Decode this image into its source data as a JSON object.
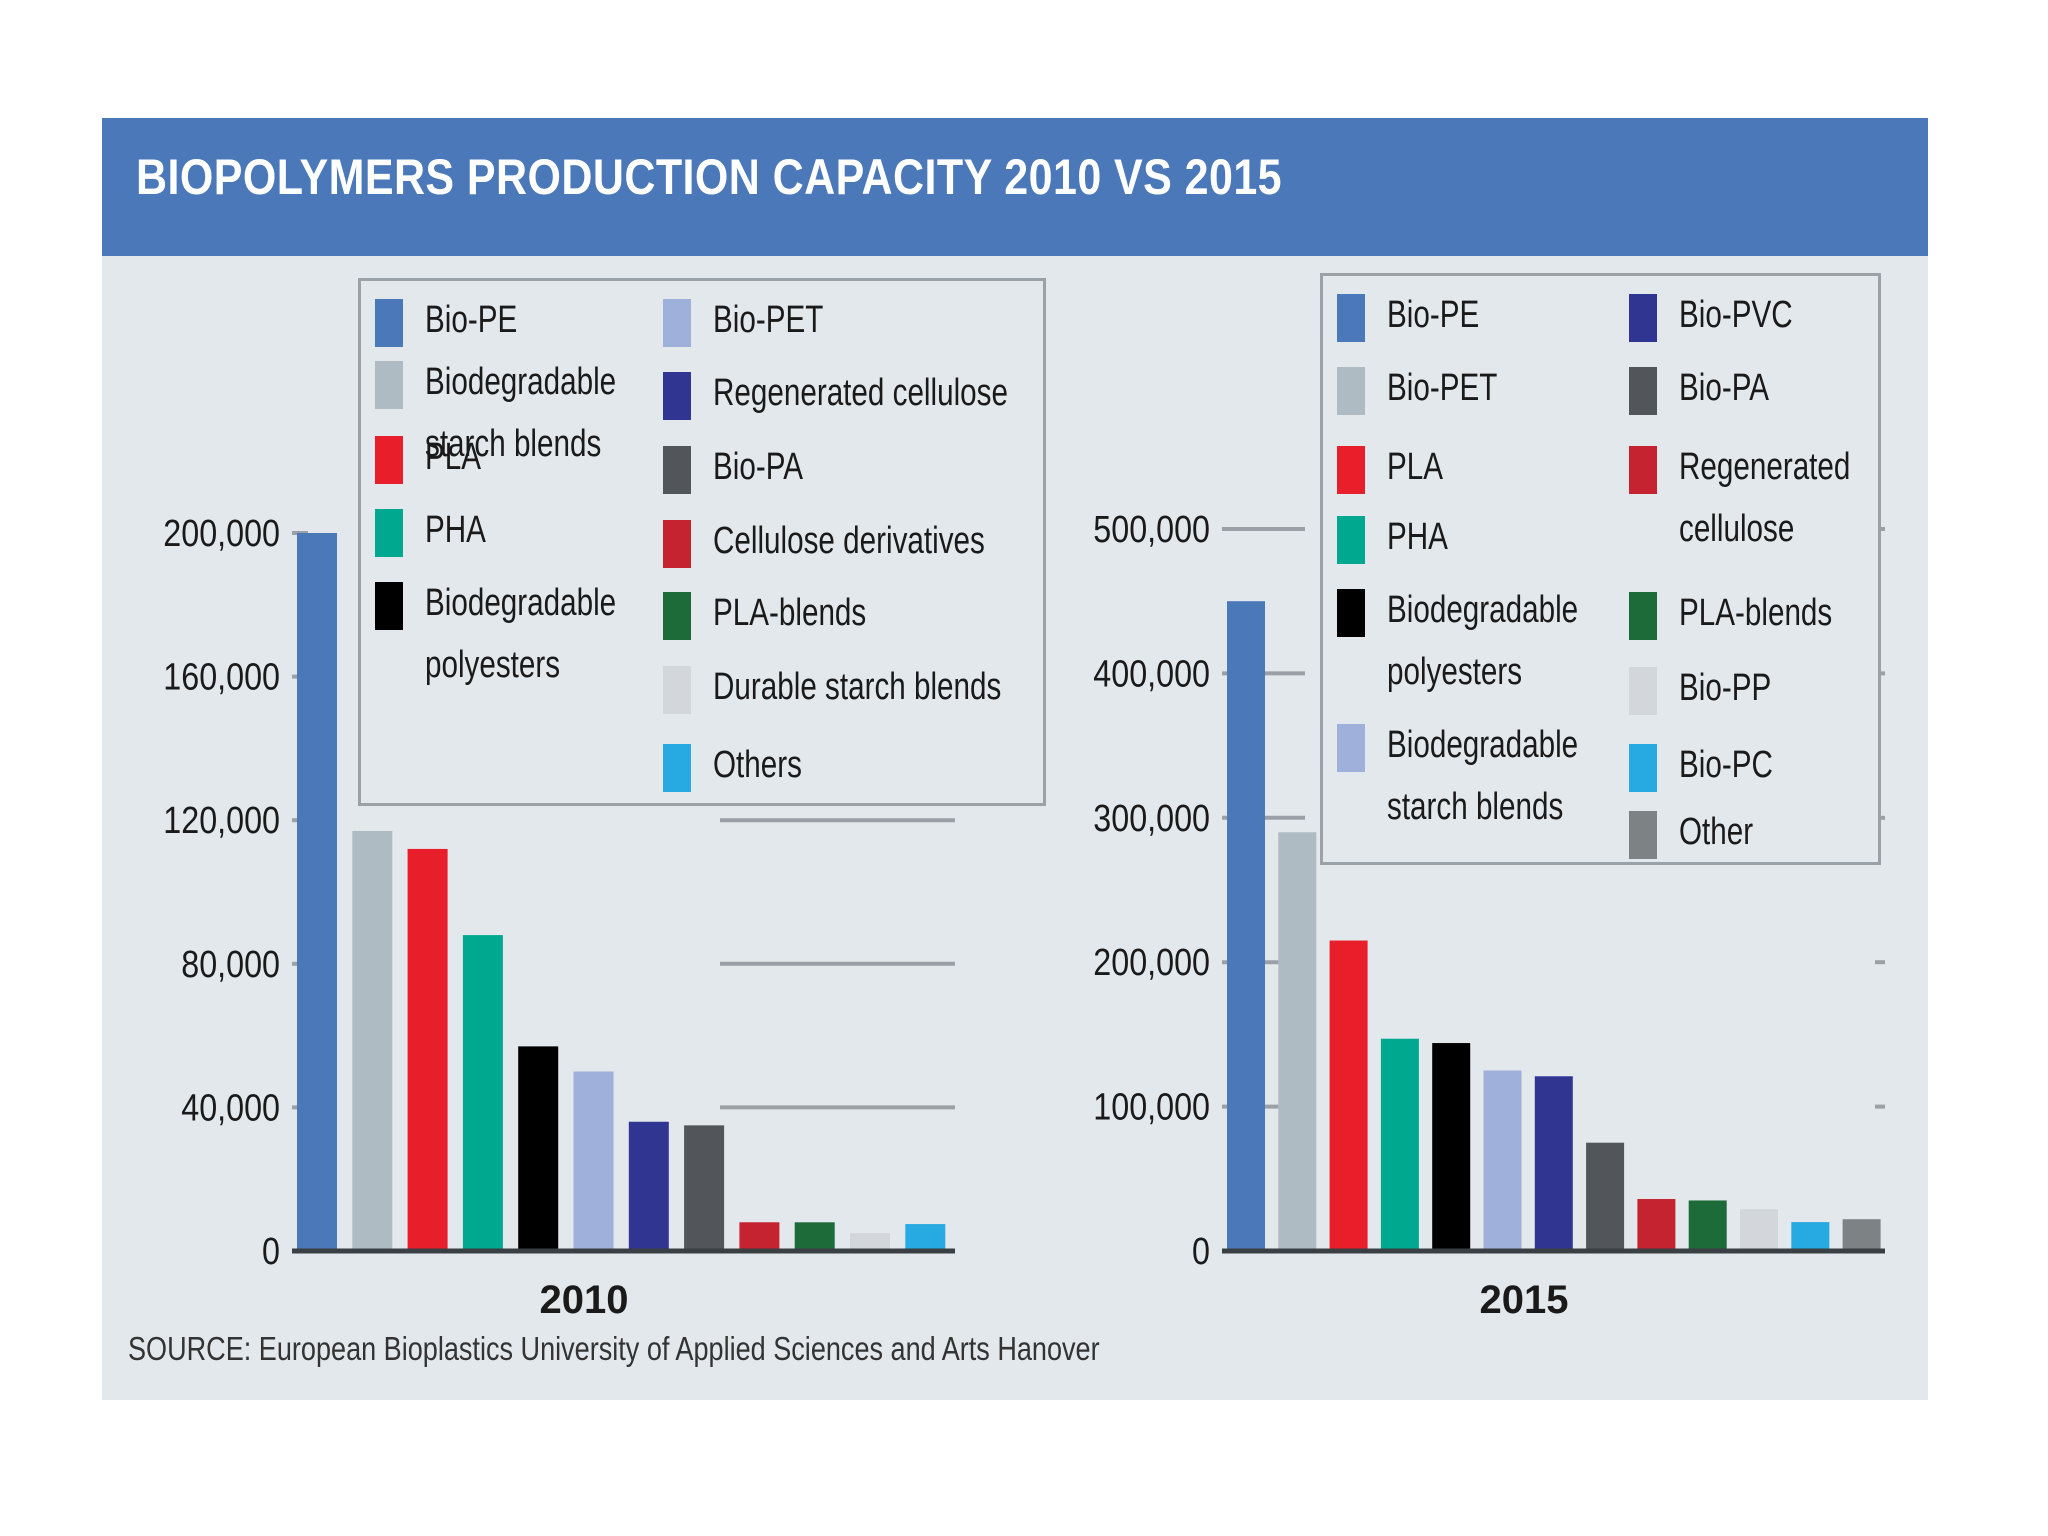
{
  "title": "BIOPOLYMERS PRODUCTION CAPACITY 2010 VS 2015",
  "source": "SOURCE: European Bioplastics University of Applied Sciences and Arts Hanover",
  "chart_data": [
    {
      "type": "bar",
      "xlabel": "2010",
      "ylim": [
        0,
        200000
      ],
      "yticks": [
        "0",
        "40,000",
        "80,000",
        "120,000",
        "160,000",
        "200,000"
      ],
      "grid": true,
      "legend_position": "top",
      "categories": [
        "Bio-PE",
        "Biodegradable starch blends",
        "PLA",
        "PHA",
        "Biodegradable polyesters",
        "Bio-PET",
        "Regenerated cellulose",
        "Bio-PA",
        "Cellulose derivatives",
        "PLA-blends",
        "Durable starch blends",
        "Others"
      ],
      "legend_lines": [
        [
          "Bio-PE"
        ],
        [
          "Biodegradable",
          "starch blends"
        ],
        [
          "PLA"
        ],
        [
          "PHA"
        ],
        [
          "Biodegradable",
          "polyesters"
        ],
        [
          "Bio-PET"
        ],
        [
          "Regenerated cellulose"
        ],
        [
          "Bio-PA"
        ],
        [
          "Cellulose derivatives"
        ],
        [
          "PLA-blends"
        ],
        [
          "Durable starch blends"
        ],
        [
          "Others"
        ]
      ],
      "values": [
        200000,
        117000,
        112000,
        88000,
        57000,
        50000,
        36000,
        35000,
        8000,
        8000,
        5000,
        7500
      ],
      "colors": [
        "#4a78b9",
        "#aebbc3",
        "#e81f2a",
        "#00a88f",
        "#000000",
        "#9fb0da",
        "#2f3590",
        "#52565a",
        "#c4232f",
        "#1e6b3a",
        "#d3d7dc",
        "#27a9e1"
      ]
    },
    {
      "type": "bar",
      "xlabel": "2015",
      "ylim": [
        0,
        500000
      ],
      "yticks": [
        "0",
        "100,000",
        "200,000",
        "300,000",
        "400,000",
        "500,000"
      ],
      "grid": true,
      "legend_position": "top-right",
      "categories": [
        "Bio-PE",
        "Bio-PET",
        "PLA",
        "PHA",
        "Biodegradable polyesters",
        "Biodegradable starch blends",
        "Bio-PVC",
        "Bio-PA",
        "Regenerated cellulose",
        "PLA-blends",
        "Bio-PP",
        "Bio-PC",
        "Other"
      ],
      "legend_lines": [
        [
          "Bio-PE"
        ],
        [
          "Bio-PET"
        ],
        [
          "PLA"
        ],
        [
          "PHA"
        ],
        [
          "Biodegradable",
          "polyesters"
        ],
        [
          "Biodegradable",
          "starch blends"
        ],
        [
          "Bio-PVC"
        ],
        [
          "Bio-PA"
        ],
        [
          "Regenerated",
          "cellulose"
        ],
        [
          "PLA-blends"
        ],
        [
          "Bio-PP"
        ],
        [
          "Bio-PC"
        ],
        [
          "Other"
        ]
      ],
      "values": [
        450000,
        290000,
        215000,
        147000,
        144000,
        125000,
        121000,
        75000,
        36000,
        35000,
        29000,
        20000,
        22000
      ],
      "colors": [
        "#4a78b9",
        "#aebbc3",
        "#e81f2a",
        "#00a88f",
        "#000000",
        "#9fb0da",
        "#2f3590",
        "#52565a",
        "#c4232f",
        "#1e6b3a",
        "#d3d7dc",
        "#27a9e1",
        "#7d8285"
      ]
    }
  ]
}
